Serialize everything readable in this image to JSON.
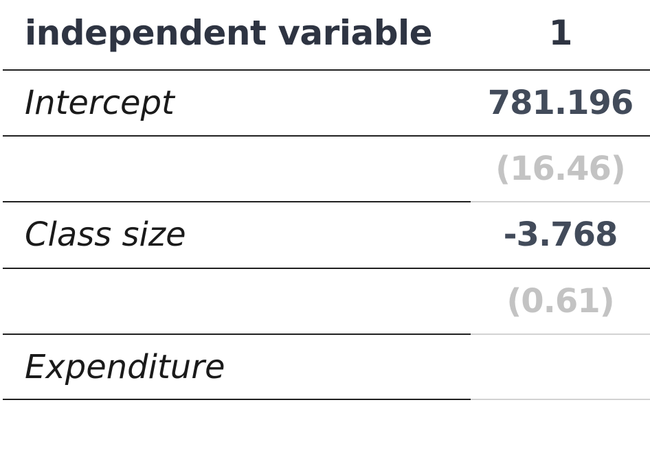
{
  "table": {
    "header": {
      "label": "independent variable",
      "value": "1"
    },
    "rows": [
      {
        "label": "Intercept",
        "value": "781.196"
      },
      {
        "label": "",
        "value": "(16.46)"
      },
      {
        "label": "Class size",
        "value": "-3.768"
      },
      {
        "label": "",
        "value": "(0.61)"
      },
      {
        "label": "Expenditure",
        "value": ""
      }
    ]
  },
  "colors": {
    "header_text": "#2e3442",
    "coefficient_text": "#424b5a",
    "standard_error_text": "#c3c3c3",
    "rule": "#1f1f1f"
  }
}
